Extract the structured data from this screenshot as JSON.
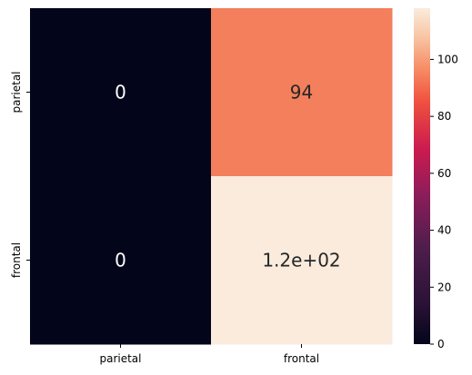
{
  "chart_data": {
    "type": "heatmap",
    "title": "",
    "xlabel": "",
    "ylabel": "",
    "x_categories": [
      "parietal",
      "frontal"
    ],
    "y_categories": [
      "parietal",
      "frontal"
    ],
    "values": [
      [
        0,
        94
      ],
      [
        0,
        118
      ]
    ],
    "annotations": [
      [
        "0",
        "94"
      ],
      [
        "0",
        "1.2e+02"
      ]
    ],
    "colorbar": {
      "range": [
        0,
        118
      ],
      "ticks": [
        0,
        20,
        40,
        60,
        80,
        100
      ],
      "tick_labels": [
        "0",
        "20",
        "40",
        "60",
        "80",
        "100"
      ],
      "colormap": "rocket"
    },
    "colors": {
      "low": "#03051a",
      "mid_dark": "#4c1d4b",
      "mid": "#cb1b4f",
      "mid_high": "#f68d65",
      "high": "#faebdd",
      "annotation_on_dark": "#ffffff",
      "annotation_on_light": "#262626"
    }
  }
}
